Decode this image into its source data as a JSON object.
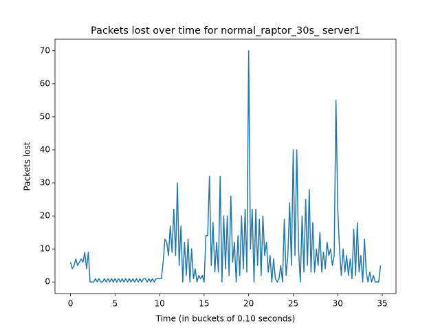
{
  "chart_data": {
    "type": "line",
    "title": "Packets lost over time for normal_raptor_30s_ server1",
    "x_label": "Time (in buckets of 0.10 seconds)",
    "y_label": "Packets lost",
    "x": [
      0,
      0.2,
      0.4,
      0.6,
      0.8,
      1,
      1.2,
      1.4,
      1.6,
      1.8,
      2,
      2.2,
      2.4,
      2.6,
      2.8,
      3,
      3.2,
      3.4,
      3.6,
      3.8,
      4,
      4.2,
      4.4,
      4.6,
      4.8,
      5,
      5.2,
      5.4,
      5.6,
      5.8,
      6,
      6.2,
      6.4,
      6.6,
      6.8,
      7,
      7.2,
      7.4,
      7.6,
      7.8,
      8,
      8.2,
      8.4,
      8.6,
      8.8,
      9,
      9.2,
      9.4,
      9.6,
      9.8,
      10,
      10.2,
      10.4,
      10.6,
      10.8,
      11,
      11.2,
      11.4,
      11.6,
      11.8,
      12,
      12.2,
      12.4,
      12.6,
      12.8,
      13,
      13.2,
      13.4,
      13.6,
      13.8,
      14,
      14.2,
      14.4,
      14.6,
      14.8,
      15,
      15.2,
      15.4,
      15.6,
      15.8,
      16,
      16.2,
      16.4,
      16.6,
      16.8,
      17,
      17.2,
      17.4,
      17.6,
      17.8,
      18,
      18.2,
      18.4,
      18.6,
      18.8,
      19,
      19.2,
      19.4,
      19.6,
      19.8,
      20,
      20.2,
      20.4,
      20.6,
      20.8,
      21,
      21.2,
      21.4,
      21.6,
      21.8,
      22,
      22.2,
      22.4,
      22.6,
      22.8,
      23,
      23.2,
      23.4,
      23.6,
      23.8,
      24,
      24.2,
      24.4,
      24.6,
      24.8,
      25,
      25.2,
      25.4,
      25.6,
      25.8,
      26,
      26.2,
      26.4,
      26.6,
      26.8,
      27,
      27.2,
      27.4,
      27.6,
      27.8,
      28,
      28.2,
      28.4,
      28.6,
      28.8,
      29,
      29.2,
      29.4,
      29.6,
      29.8,
      30,
      30.2,
      30.4,
      30.6,
      30.8,
      31,
      31.2,
      31.4,
      31.6,
      31.8,
      32,
      32.2,
      32.4,
      32.6,
      32.8,
      33,
      33.2,
      33.4,
      33.6,
      33.8,
      34,
      34.2,
      34.4,
      34.6,
      34.8
    ],
    "series": [
      {
        "color": "#1f77b4",
        "values": [
          6,
          4,
          5,
          7,
          5,
          6,
          7,
          6,
          9,
          4,
          9,
          0,
          0,
          0,
          1,
          0,
          1,
          0,
          0,
          1,
          0,
          1,
          0,
          1,
          0,
          1,
          0,
          1,
          0,
          1,
          0,
          1,
          0,
          1,
          0,
          1,
          0,
          1,
          0,
          1,
          0,
          1,
          1,
          0,
          1,
          0,
          1,
          0,
          1,
          1,
          1,
          1,
          6,
          13,
          12,
          8,
          17,
          9,
          22,
          8,
          30,
          5,
          17,
          0,
          12,
          2,
          13,
          0,
          10,
          1,
          4,
          0,
          2,
          1,
          2,
          0,
          14,
          14,
          32,
          5,
          18,
          3,
          12,
          3,
          32,
          0,
          20,
          4,
          20,
          2,
          26,
          6,
          12,
          0,
          14,
          2,
          20,
          4,
          22,
          3,
          70,
          10,
          22,
          0,
          22,
          5,
          19,
          2,
          20,
          8,
          12,
          3,
          8,
          0,
          7,
          1,
          0,
          1,
          5,
          0,
          19,
          2,
          8,
          24,
          5,
          40,
          8,
          40,
          10,
          0,
          20,
          3,
          25,
          5,
          28,
          3,
          18,
          3,
          10,
          5,
          15,
          3,
          9,
          4,
          12,
          8,
          10,
          5,
          8,
          55,
          22,
          10,
          2,
          10,
          3,
          8,
          2,
          7,
          1,
          16,
          2,
          18,
          3,
          8,
          0,
          13,
          3,
          0,
          3,
          0,
          2,
          0,
          0,
          0,
          5
        ]
      }
    ],
    "xlim": [
      -1.74,
      36.54
    ],
    "xticks": [
      0,
      5,
      10,
      15,
      20,
      25,
      30,
      35
    ],
    "ylim": [
      -3.5,
      73.5
    ],
    "yticks": [
      0,
      10,
      20,
      30,
      40,
      50,
      60,
      70
    ],
    "grid": false
  }
}
